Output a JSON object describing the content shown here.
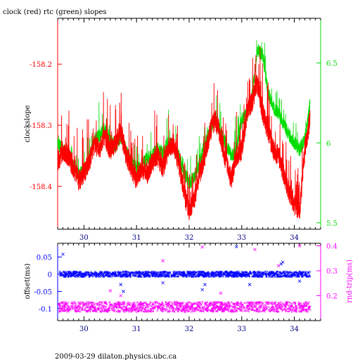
{
  "header": {
    "title": "clock (red) rtc (green) slopes"
  },
  "footer": {
    "text": "2009-03-29  dilaton.physics.ubc.ca"
  },
  "colors": {
    "clock": "#ff0000",
    "rtc": "#00dd00",
    "offset": "#0000ff",
    "roundtrip": "#ff00ff",
    "axis": "#000000"
  },
  "chart_data": [
    {
      "type": "line",
      "title": "clock (red) rtc (green) slopes",
      "ylabel": "clockslope",
      "y2label": "",
      "xlim": [
        29.5,
        34.5
      ],
      "ylim": [
        -158.47,
        -158.125
      ],
      "y2lim": [
        5.46,
        6.78
      ],
      "x_ticks": [
        30,
        31,
        32,
        33,
        34
      ],
      "y_ticks": [
        -158.2,
        -158.3,
        -158.4
      ],
      "y_tick_labels": [
        "-158.2",
        "-158.3",
        "-158.4"
      ],
      "y2_ticks": [
        5.5,
        6,
        6.5
      ],
      "y2_tick_labels": [
        "5.5",
        "6",
        "6.5"
      ],
      "grid": false,
      "series": [
        {
          "name": "clock",
          "axis": "left",
          "x": [
            29.5,
            29.6,
            29.7,
            29.8,
            29.9,
            30.0,
            30.1,
            30.2,
            30.3,
            30.4,
            30.5,
            30.6,
            30.7,
            30.8,
            30.9,
            31.0,
            31.1,
            31.2,
            31.3,
            31.4,
            31.5,
            31.6,
            31.7,
            31.8,
            31.9,
            32.0,
            32.1,
            32.2,
            32.3,
            32.4,
            32.5,
            32.6,
            32.7,
            32.8,
            32.9,
            33.0,
            33.1,
            33.2,
            33.3,
            33.4,
            33.5,
            33.6,
            33.7,
            33.8,
            33.9,
            34.0,
            34.1,
            34.2,
            34.3
          ],
          "y": [
            -158.36,
            -158.34,
            -158.35,
            -158.37,
            -158.39,
            -158.38,
            -158.36,
            -158.33,
            -158.34,
            -158.32,
            -158.34,
            -158.33,
            -158.31,
            -158.35,
            -158.37,
            -158.39,
            -158.37,
            -158.38,
            -158.36,
            -158.35,
            -158.37,
            -158.34,
            -158.33,
            -158.36,
            -158.41,
            -158.44,
            -158.42,
            -158.38,
            -158.35,
            -158.31,
            -158.29,
            -158.32,
            -158.36,
            -158.39,
            -158.35,
            -158.34,
            -158.28,
            -158.26,
            -158.23,
            -158.28,
            -158.31,
            -158.34,
            -158.35,
            -158.38,
            -158.41,
            -158.43,
            -158.44,
            -158.34,
            -158.29
          ]
        },
        {
          "name": "rtc",
          "axis": "right",
          "x": [
            29.5,
            29.6,
            29.7,
            29.8,
            29.9,
            30.0,
            30.1,
            30.2,
            30.3,
            30.4,
            30.5,
            30.6,
            30.7,
            30.8,
            30.9,
            31.0,
            31.1,
            31.2,
            31.3,
            31.4,
            31.5,
            31.6,
            31.7,
            31.8,
            31.9,
            32.0,
            32.1,
            32.2,
            32.3,
            32.4,
            32.5,
            32.6,
            32.7,
            32.8,
            32.9,
            33.0,
            33.1,
            33.2,
            33.3,
            33.4,
            33.5,
            33.6,
            33.7,
            33.8,
            33.9,
            34.0,
            34.1,
            34.2,
            34.3
          ],
          "y": [
            6.0,
            5.95,
            5.92,
            5.85,
            5.8,
            5.82,
            5.9,
            6.02,
            6.05,
            6.08,
            6.02,
            5.98,
            6.04,
            5.95,
            5.88,
            5.84,
            5.86,
            5.9,
            5.92,
            5.96,
            5.94,
            6.0,
            5.98,
            5.92,
            5.82,
            5.75,
            5.78,
            5.88,
            6.0,
            6.08,
            6.16,
            6.06,
            6.0,
            5.92,
            5.96,
            6.15,
            6.18,
            6.3,
            6.58,
            6.55,
            6.32,
            6.22,
            6.18,
            6.12,
            6.05,
            6.0,
            5.96,
            6.02,
            6.24
          ]
        }
      ]
    },
    {
      "type": "scatter",
      "ylabel": "offset(ms)",
      "y2label": "rnd-trip(ms)",
      "xlim": [
        29.5,
        34.5
      ],
      "ylim": [
        -0.135,
        0.09
      ],
      "y2lim": [
        0.1,
        0.41
      ],
      "x_ticks": [
        30,
        31,
        32,
        33,
        34
      ],
      "y_ticks": [
        0.05,
        0,
        -0.05,
        -0.1
      ],
      "y_tick_labels": [
        "0.05",
        "0",
        "-0.05",
        "-0.1"
      ],
      "y2_ticks": [
        0.2,
        0.3,
        0.4
      ],
      "y2_tick_labels": [
        "0.2",
        "0.3",
        "0.4"
      ],
      "grid": false,
      "series": [
        {
          "name": "offset",
          "axis": "left",
          "band_x": [
            29.52,
            34.3
          ],
          "band_y": [
            -0.008,
            0.008
          ],
          "outliers": [
            [
              29.6,
              0.058
            ],
            [
              30.7,
              -0.03
            ],
            [
              30.75,
              -0.05
            ],
            [
              31.5,
              -0.025
            ],
            [
              32.25,
              -0.045
            ],
            [
              32.3,
              -0.03
            ],
            [
              32.9,
              0.08
            ],
            [
              33.15,
              -0.03
            ],
            [
              33.75,
              0.03
            ],
            [
              33.78,
              0.035
            ],
            [
              34.1,
              -0.02
            ]
          ]
        },
        {
          "name": "roundtrip",
          "axis": "right",
          "band_x": [
            29.52,
            34.3
          ],
          "band_y": [
            0.135,
            0.175
          ],
          "outliers": [
            [
              30.5,
              0.22
            ],
            [
              30.7,
              0.2
            ],
            [
              31.5,
              0.34
            ],
            [
              32.25,
              0.395
            ],
            [
              32.6,
              0.21
            ],
            [
              33.25,
              0.385
            ],
            [
              33.7,
              0.32
            ],
            [
              34.1,
              0.4
            ]
          ]
        }
      ]
    }
  ]
}
